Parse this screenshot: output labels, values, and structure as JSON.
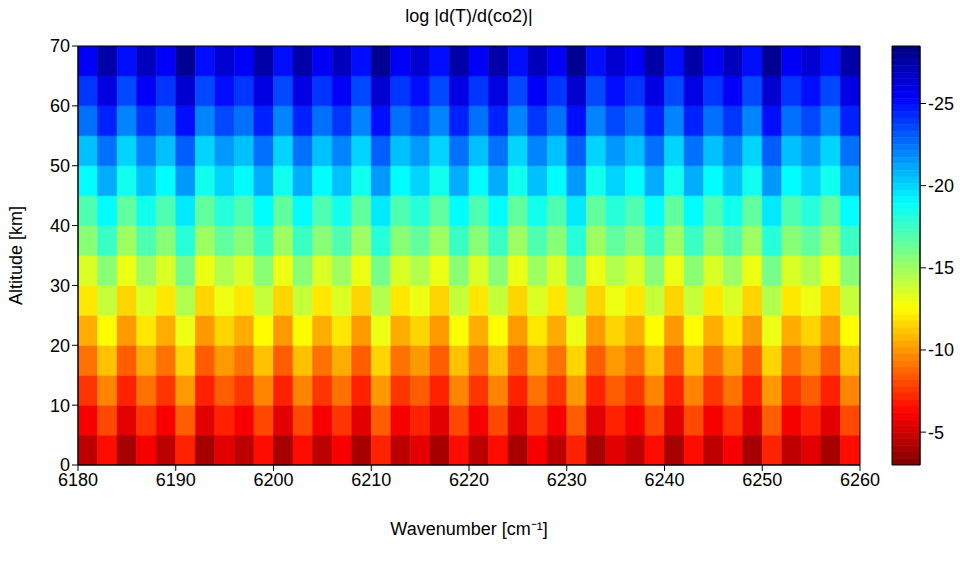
{
  "chart_data": {
    "type": "heatmap",
    "title": "log |d(T)/d(co2)|",
    "x_label": "Wavenumber [cm⁻¹]",
    "y_label": "Altitude [km]",
    "xlim": [
      6180,
      6260
    ],
    "xticks": [
      6180,
      6190,
      6200,
      6210,
      6220,
      6230,
      6240,
      6250,
      6260
    ],
    "ylim": [
      0,
      70
    ],
    "yticks": [
      0,
      10,
      20,
      30,
      40,
      50,
      60,
      70
    ],
    "x_edges": [
      6180,
      6182,
      6184,
      6186,
      6188,
      6190,
      6192,
      6194,
      6196,
      6198,
      6200,
      6202,
      6204,
      6206,
      6208,
      6210,
      6212,
      6214,
      6216,
      6218,
      6220,
      6222,
      6224,
      6226,
      6228,
      6230,
      6232,
      6234,
      6236,
      6238,
      6240,
      6242,
      6244,
      6246,
      6248,
      6250,
      6252,
      6254,
      6256,
      6258,
      6260
    ],
    "y_edges": [
      0,
      5,
      10,
      15,
      20,
      25,
      30,
      35,
      40,
      45,
      50,
      55,
      60,
      65,
      70
    ],
    "cells": [
      [
        -4.5,
        -6.5,
        -4,
        -6,
        -4.5,
        -7,
        -4,
        -5.5,
        -4.5,
        -6.5,
        -4,
        -6.5,
        -4.5,
        -6,
        -4,
        -7,
        -4.5,
        -5.5,
        -4,
        -6.5,
        -4.5,
        -6.5,
        -4,
        -6,
        -4.5,
        -7,
        -4,
        -5.5,
        -4.5,
        -6.5,
        -4,
        -6.5,
        -4.5,
        -6,
        -4,
        -7,
        -4.5,
        -5.5,
        -4,
        -6.5
      ],
      [
        -6,
        -8,
        -5.5,
        -7.5,
        -6,
        -8.5,
        -5.5,
        -7,
        -6,
        -8,
        -5.5,
        -8,
        -6,
        -7.5,
        -5.5,
        -8.5,
        -6,
        -7,
        -5.5,
        -8,
        -6,
        -8,
        -5.5,
        -7.5,
        -6,
        -8.5,
        -5.5,
        -7,
        -6,
        -8,
        -5.5,
        -8,
        -6,
        -7.5,
        -5.5,
        -8.5,
        -6,
        -7,
        -5.5,
        -8
      ],
      [
        -7.5,
        -9.5,
        -7,
        -9,
        -7.5,
        -10,
        -7,
        -8.5,
        -7.5,
        -9.5,
        -7,
        -9.5,
        -7.5,
        -9,
        -7,
        -10,
        -7.5,
        -8.5,
        -7,
        -9.5,
        -7.5,
        -9.5,
        -7,
        -9,
        -7.5,
        -10,
        -7,
        -8.5,
        -7.5,
        -9.5,
        -7,
        -9.5,
        -7.5,
        -9,
        -7,
        -10,
        -7.5,
        -8.5,
        -7,
        -9.5
      ],
      [
        -9,
        -11,
        -8.5,
        -10.5,
        -9,
        -11.5,
        -8.5,
        -10,
        -9,
        -11,
        -8.5,
        -11,
        -9,
        -10.5,
        -8.5,
        -11.5,
        -9,
        -10,
        -8.5,
        -11,
        -9,
        -11,
        -8.5,
        -10.5,
        -9,
        -11.5,
        -8.5,
        -10,
        -9,
        -11,
        -8.5,
        -11,
        -9,
        -10.5,
        -8.5,
        -11.5,
        -9,
        -10,
        -8.5,
        -11
      ],
      [
        -10.5,
        -12.5,
        -10,
        -12,
        -10.5,
        -13,
        -10,
        -11.5,
        -10.5,
        -12.5,
        -10,
        -12.5,
        -10.5,
        -12,
        -10,
        -13,
        -10.5,
        -11.5,
        -10,
        -12.5,
        -10.5,
        -12.5,
        -10,
        -12,
        -10.5,
        -13,
        -10,
        -11.5,
        -10.5,
        -12.5,
        -10,
        -12.5,
        -10.5,
        -12,
        -10,
        -13,
        -10.5,
        -11.5,
        -10,
        -12.5
      ],
      [
        -12,
        -14,
        -11.5,
        -13.5,
        -12,
        -14.5,
        -11.5,
        -13,
        -12,
        -14,
        -11.5,
        -14,
        -12,
        -13.5,
        -11.5,
        -14.5,
        -12,
        -13,
        -11.5,
        -14,
        -12,
        -14,
        -11.5,
        -13.5,
        -12,
        -14.5,
        -11.5,
        -13,
        -12,
        -14,
        -11.5,
        -14,
        -12,
        -13.5,
        -11.5,
        -14.5,
        -12,
        -13,
        -11.5,
        -14
      ],
      [
        -13.5,
        -15.5,
        -13,
        -15,
        -13.5,
        -16,
        -13,
        -14.5,
        -13.5,
        -15.5,
        -13,
        -15.5,
        -13.5,
        -15,
        -13,
        -16,
        -13.5,
        -14.5,
        -13,
        -15.5,
        -13.5,
        -15.5,
        -13,
        -15,
        -13.5,
        -16,
        -13,
        -14.5,
        -13.5,
        -15.5,
        -13,
        -15.5,
        -13.5,
        -15,
        -13,
        -16,
        -13.5,
        -14.5,
        -13,
        -15.5
      ],
      [
        -15.5,
        -17.5,
        -15,
        -17,
        -15.5,
        -18,
        -15,
        -16.5,
        -15.5,
        -17.5,
        -15,
        -17.5,
        -15.5,
        -17,
        -15,
        -18,
        -15.5,
        -16.5,
        -15,
        -17.5,
        -15.5,
        -17.5,
        -15,
        -17,
        -15.5,
        -18,
        -15,
        -16.5,
        -15.5,
        -17.5,
        -15,
        -17.5,
        -15.5,
        -17,
        -15,
        -18,
        -15.5,
        -16.5,
        -15,
        -17.5
      ],
      [
        -17,
        -19,
        -16.5,
        -18.5,
        -17,
        -19.5,
        -16.5,
        -18,
        -17,
        -19,
        -16.5,
        -19,
        -17,
        -18.5,
        -16.5,
        -19.5,
        -17,
        -18,
        -16.5,
        -19,
        -17,
        -19,
        -16.5,
        -18.5,
        -17,
        -19.5,
        -16.5,
        -18,
        -17,
        -19,
        -16.5,
        -19,
        -17,
        -18.5,
        -16.5,
        -19.5,
        -17,
        -18,
        -16.5,
        -19
      ],
      [
        -19,
        -21,
        -18.5,
        -20.5,
        -19,
        -21.5,
        -18.5,
        -20,
        -19,
        -21,
        -18.5,
        -21,
        -19,
        -20.5,
        -18.5,
        -21.5,
        -19,
        -20,
        -18.5,
        -21,
        -19,
        -21,
        -18.5,
        -20.5,
        -19,
        -21.5,
        -18.5,
        -20,
        -19,
        -21,
        -18.5,
        -21,
        -19,
        -20.5,
        -18.5,
        -21.5,
        -19,
        -20,
        -18.5,
        -21
      ],
      [
        -20.5,
        -22.5,
        -20,
        -22,
        -20.5,
        -23,
        -20,
        -21.5,
        -20.5,
        -22.5,
        -20,
        -22.5,
        -20.5,
        -22,
        -20,
        -23,
        -20.5,
        -21.5,
        -20,
        -22.5,
        -20.5,
        -22.5,
        -20,
        -22,
        -20.5,
        -23,
        -20,
        -21.5,
        -20.5,
        -22.5,
        -20,
        -22.5,
        -20.5,
        -22,
        -20,
        -23,
        -20.5,
        -21.5,
        -20,
        -22.5
      ],
      [
        -22.5,
        -24.5,
        -22,
        -24,
        -22.5,
        -25,
        -22,
        -23.5,
        -22.5,
        -24.5,
        -22,
        -24.5,
        -22.5,
        -24,
        -22,
        -25,
        -22.5,
        -23.5,
        -22,
        -24.5,
        -22.5,
        -24.5,
        -22,
        -24,
        -22.5,
        -25,
        -22,
        -23.5,
        -22.5,
        -24.5,
        -22,
        -24.5,
        -22.5,
        -24,
        -22,
        -25,
        -22.5,
        -23.5,
        -22,
        -24.5
      ],
      [
        -24,
        -26,
        -23.5,
        -25.5,
        -24,
        -26.5,
        -23.5,
        -25,
        -24,
        -26,
        -23.5,
        -26,
        -24,
        -25.5,
        -23.5,
        -26.5,
        -24,
        -25,
        -23.5,
        -26,
        -24,
        -26,
        -23.5,
        -25.5,
        -24,
        -26.5,
        -23.5,
        -25,
        -24,
        -26,
        -23.5,
        -26,
        -24,
        -25.5,
        -23.5,
        -26.5,
        -24,
        -25,
        -23.5,
        -26
      ],
      [
        -25.5,
        -27.5,
        -25,
        -27,
        -25.5,
        -28,
        -25,
        -26.5,
        -25.5,
        -27.5,
        -25,
        -27.5,
        -25.5,
        -27,
        -25,
        -28,
        -25.5,
        -26.5,
        -25,
        -27.5,
        -25.5,
        -27.5,
        -25,
        -27,
        -25.5,
        -28,
        -25,
        -26.5,
        -25.5,
        -27.5,
        -25,
        -27.5,
        -25.5,
        -27,
        -25,
        -28,
        -25.5,
        -26.5,
        -25,
        -27.5
      ]
    ],
    "colorbar": {
      "range": [
        -28.5,
        -3
      ],
      "ticks": [
        -25,
        -20,
        -15,
        -10,
        -5
      ]
    }
  }
}
